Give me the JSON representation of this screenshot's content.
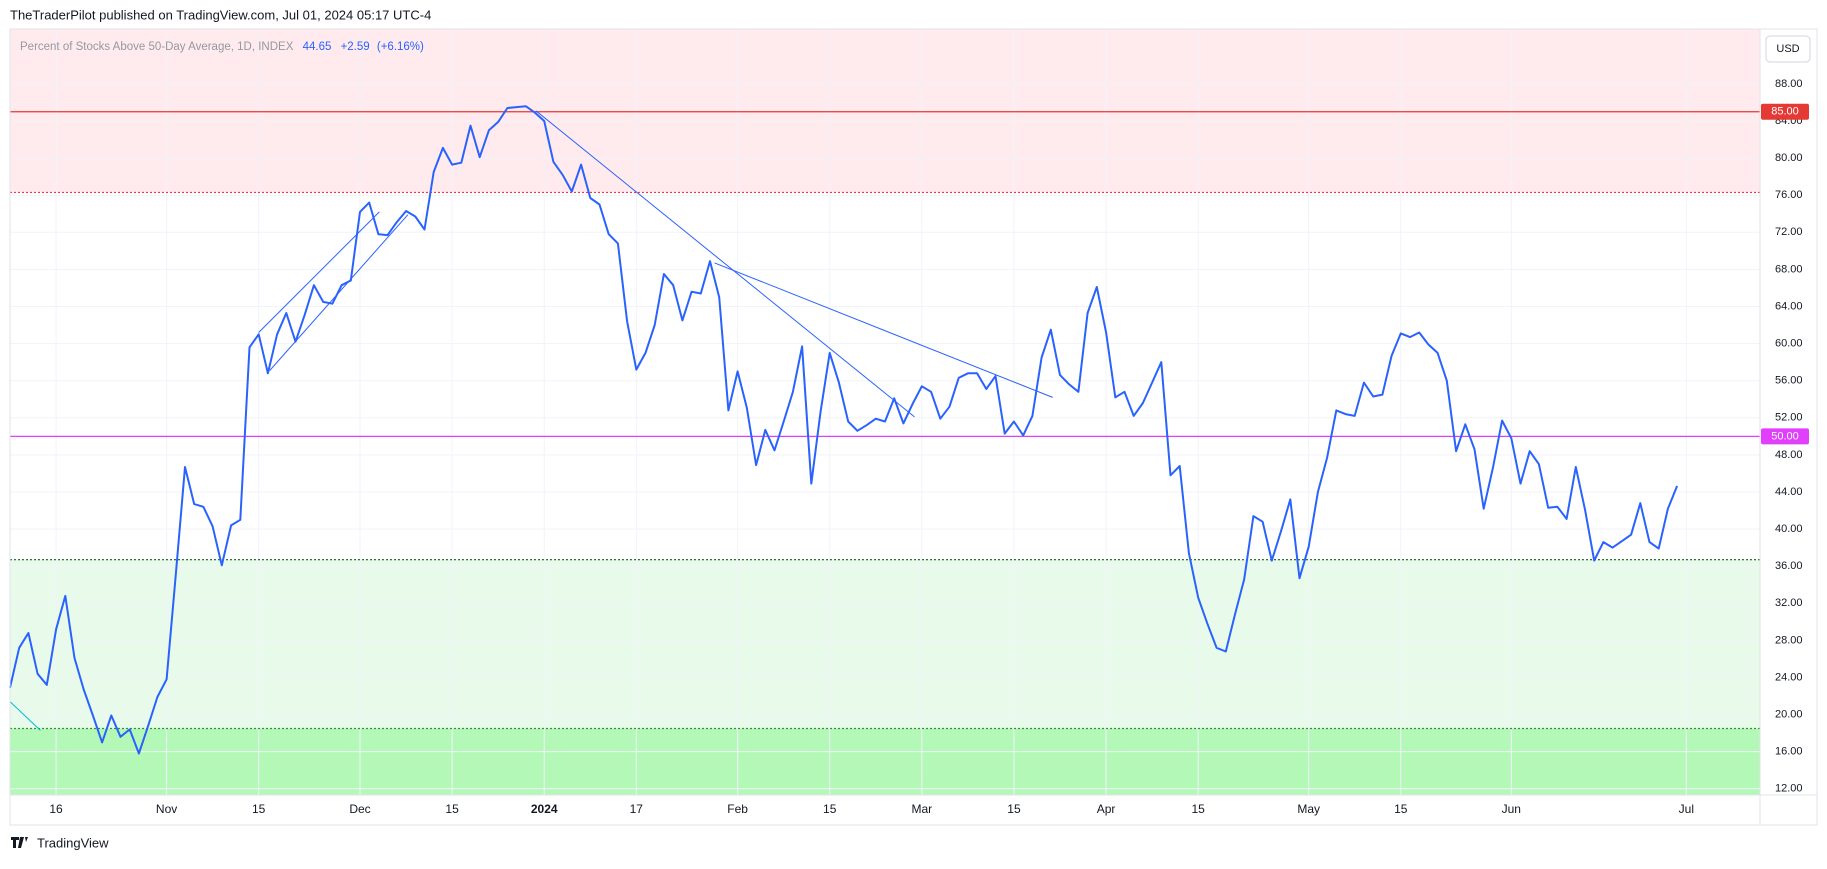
{
  "header": {
    "publisher": "TheTraderPilot published on TradingView.com, Jul 01, 2024 05:17 UTC-4"
  },
  "footer": {
    "brand": "TradingView"
  },
  "currency": "USD",
  "chart_data": {
    "type": "line",
    "series": [
      {
        "name": "Percent of Stocks Above 50-Day Average, 1D, INDEX",
        "color": "#2962ff",
        "values": [
          22.9,
          27.2,
          28.8,
          24.4,
          23.2,
          29.2,
          32.8,
          26.1,
          22.7,
          19.9,
          17.0,
          19.9,
          17.6,
          18.4,
          15.8,
          18.8,
          21.9,
          23.8,
          35.1,
          46.7,
          42.7,
          42.4,
          40.3,
          36.1,
          40.4,
          41.0,
          59.6,
          61.0,
          56.8,
          61.0,
          63.3,
          60.2,
          63.1,
          66.3,
          64.5,
          64.3,
          66.3,
          66.8,
          74.2,
          75.2,
          71.8,
          71.7,
          73.1,
          74.3,
          73.7,
          72.3,
          78.5,
          81.1,
          79.3,
          79.5,
          83.5,
          80.1,
          83.0,
          83.9,
          85.4,
          85.5,
          85.6,
          84.9,
          84.0,
          79.6,
          78.2,
          76.4,
          79.3,
          75.7,
          75.0,
          71.8,
          70.8,
          62.4,
          57.2,
          59.0,
          62.0,
          67.5,
          66.3,
          62.5,
          65.6,
          65.4,
          68.9,
          65.0,
          52.8,
          57.0,
          53.1,
          46.9,
          50.7,
          48.5,
          51.6,
          54.8,
          59.7,
          44.9,
          52.6,
          59.0,
          55.8,
          51.6,
          50.6,
          51.2,
          51.9,
          51.6,
          54.1,
          51.4,
          53.5,
          55.4,
          54.8,
          51.9,
          53.2,
          56.3,
          56.8,
          56.8,
          55.1,
          56.5,
          50.3,
          51.6,
          50.1,
          52.2,
          58.5,
          61.5,
          56.6,
          55.6,
          54.8,
          63.3,
          66.1,
          61.2,
          54.2,
          54.8,
          52.2,
          53.6,
          55.8,
          58.0,
          45.8,
          46.8,
          37.4,
          32.6,
          29.8,
          27.2,
          26.8,
          30.8,
          34.6,
          41.4,
          40.8,
          36.6,
          39.8,
          43.2,
          34.7,
          38.1,
          44.0,
          47.7,
          52.8,
          52.4,
          52.2,
          55.8,
          54.3,
          54.5,
          58.7,
          61.1,
          60.7,
          61.2,
          59.9,
          59.0,
          56.0,
          48.4,
          51.3,
          48.6,
          42.2,
          46.6,
          51.7,
          49.8,
          44.9,
          48.4,
          47.0,
          42.3,
          42.4,
          41.1,
          46.7,
          42.1,
          36.6,
          38.6,
          38.0,
          38.7,
          39.4,
          42.8,
          38.6,
          37.9,
          42.2,
          44.65
        ]
      }
    ],
    "change": {
      "value": 2.59,
      "label": "+2.59"
    },
    "change_percent": {
      "value": 6.16,
      "label": "(+6.16%)"
    },
    "xlim": [
      0,
      190
    ],
    "xticks": [
      {
        "value": 5,
        "label": "16"
      },
      {
        "value": 17,
        "label": "Nov"
      },
      {
        "value": 27,
        "label": "15"
      },
      {
        "value": 38,
        "label": "Dec"
      },
      {
        "value": 48,
        "label": "15"
      },
      {
        "value": 58,
        "label": "2024",
        "bold": true
      },
      {
        "value": 68,
        "label": "17"
      },
      {
        "value": 79,
        "label": "Feb"
      },
      {
        "value": 89,
        "label": "15"
      },
      {
        "value": 99,
        "label": "Mar"
      },
      {
        "value": 109,
        "label": "15"
      },
      {
        "value": 119,
        "label": "Apr"
      },
      {
        "value": 129,
        "label": "15"
      },
      {
        "value": 141,
        "label": "May"
      },
      {
        "value": 151,
        "label": "15"
      },
      {
        "value": 163,
        "label": "Jun"
      },
      {
        "value": 182,
        "label": "Jul"
      }
    ],
    "ylim": [
      11.33,
      93.92
    ],
    "yticks": [
      {
        "value": 12,
        "label": "12.00"
      },
      {
        "value": 16,
        "label": "16.00"
      },
      {
        "value": 20,
        "label": "20.00"
      },
      {
        "value": 24,
        "label": "24.00"
      },
      {
        "value": 28,
        "label": "28.00"
      },
      {
        "value": 32,
        "label": "32.00"
      },
      {
        "value": 36,
        "label": "36.00"
      },
      {
        "value": 40,
        "label": "40.00"
      },
      {
        "value": 44,
        "label": "44.00"
      },
      {
        "value": 48,
        "label": "48.00"
      },
      {
        "value": 52,
        "label": "52.00"
      },
      {
        "value": 56,
        "label": "56.00"
      },
      {
        "value": 60,
        "label": "60.00"
      },
      {
        "value": 64,
        "label": "64.00"
      },
      {
        "value": 68,
        "label": "68.00"
      },
      {
        "value": 72,
        "label": "72.00"
      },
      {
        "value": 76,
        "label": "76.00"
      },
      {
        "value": 80,
        "label": "80.00"
      },
      {
        "value": 84,
        "label": "84.00"
      },
      {
        "value": 88,
        "label": "88.00"
      }
    ],
    "grid": true,
    "zones": [
      {
        "low": 76.3,
        "color": "#ffebee"
      },
      {
        "low": 18.5,
        "high": 36.7,
        "color": "#e8fbea"
      },
      {
        "high": 18.5,
        "color": "#b4f8b8"
      }
    ],
    "levels": [
      {
        "value": 85,
        "label": "85.00",
        "color": "#e53935",
        "style": "solid"
      },
      {
        "value": 76.3,
        "color": "#f23645",
        "style": "dotted"
      },
      {
        "value": 50,
        "label": "50.00",
        "color": "#e040fb",
        "style": "solid"
      },
      {
        "value": 36.7,
        "color": "#1b5e20",
        "style": "dotted"
      },
      {
        "value": 18.5,
        "color": "#388e3c",
        "style": "dotted"
      }
    ],
    "drawings": [
      {
        "start": [
          27,
          61.2
        ],
        "end": [
          40.1,
          74.2
        ],
        "color": "#2962ff"
      },
      {
        "start": [
          28.2,
          57.1
        ],
        "end": [
          43.2,
          73.9
        ],
        "color": "#2962ff"
      },
      {
        "start": [
          57.1,
          85.1
        ],
        "end": [
          98.2,
          52.1
        ],
        "color": "#2962ff"
      },
      {
        "start": [
          76.5,
          68.7
        ],
        "end": [
          113.2,
          54.2
        ],
        "color": "#2962ff"
      },
      {
        "start": [
          0,
          21.4
        ],
        "end": [
          3.3,
          18.3
        ],
        "color": "#00bcd4"
      }
    ]
  }
}
